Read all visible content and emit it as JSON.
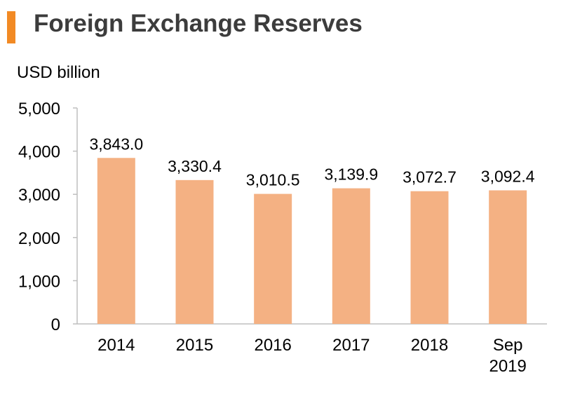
{
  "header": {
    "title": "Foreign Exchange Reserves"
  },
  "chart_data": {
    "type": "bar",
    "title": "Foreign Exchange Reserves",
    "unit_label": "USD billion",
    "categories": [
      [
        "2014"
      ],
      [
        "2015"
      ],
      [
        "2016"
      ],
      [
        "2017"
      ],
      [
        "2018"
      ],
      [
        "Sep",
        "2019"
      ]
    ],
    "values": [
      3843.0,
      3330.4,
      3010.5,
      3139.9,
      3072.7,
      3092.4
    ],
    "value_labels": [
      "3,843.0",
      "3,330.4",
      "3,010.5",
      "3,139.9",
      "3,072.7",
      "3,092.4"
    ],
    "y_ticks": [
      "0",
      "1,000",
      "2,000",
      "3,000",
      "4,000",
      "5,000"
    ],
    "ylim": [
      0,
      5000
    ],
    "grid": false,
    "legend": "none",
    "colors": {
      "bar": "#f4b183",
      "axis": "#bfbfbf",
      "accent": "#f28a24"
    }
  }
}
